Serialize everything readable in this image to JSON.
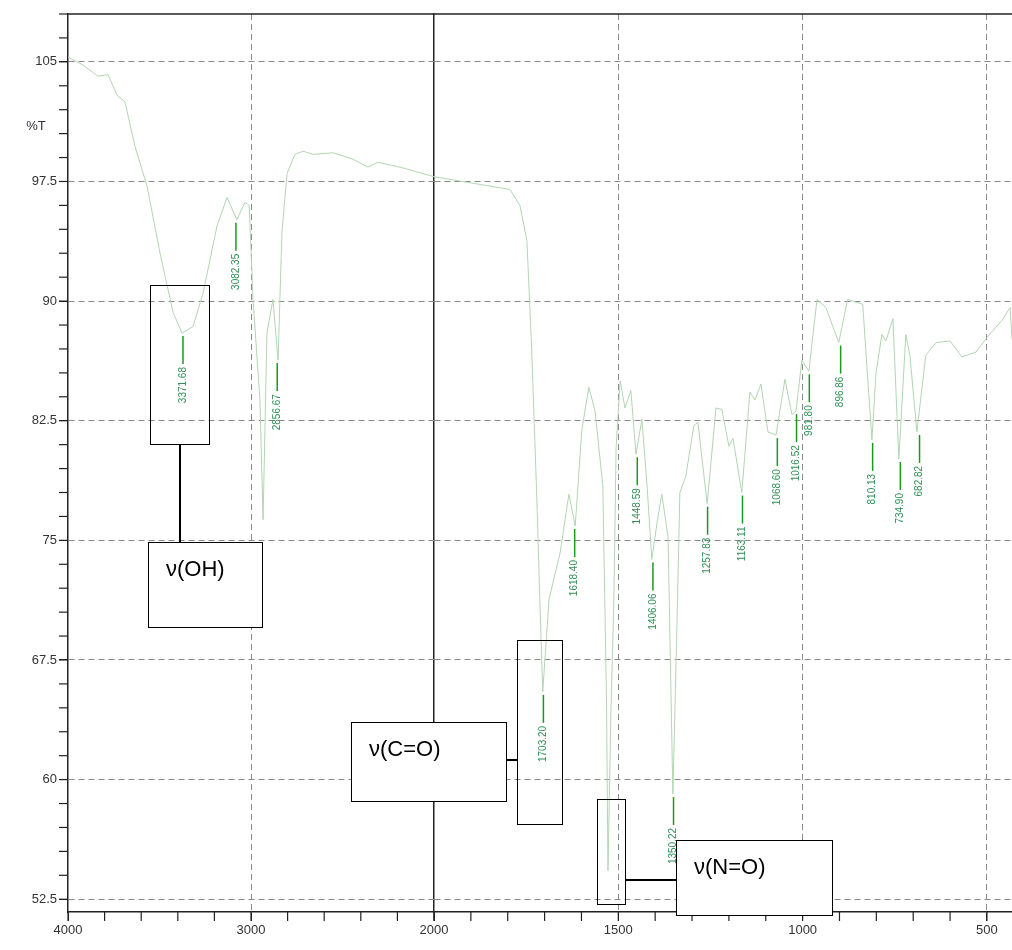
{
  "chart_data": [
    {
      "type": "line",
      "ylabel": "%T",
      "xlim": [
        4000,
        2000
      ],
      "xticks": [
        4000,
        3000,
        2000
      ],
      "ylim": [
        51.7,
        108
      ],
      "yticks": [
        52.5,
        60,
        67.5,
        75,
        82.5,
        90,
        97.5,
        105
      ],
      "grid": true,
      "series": [
        {
          "color": "#b2d6b2",
          "x": [
            4000,
            3918,
            3836,
            3781,
            3732,
            3689,
            3634,
            3568,
            3497,
            3426,
            3377,
            3317,
            3262,
            3186,
            3131,
            3077,
            3033,
            3010,
            2989,
            2951,
            2934,
            2913,
            2880,
            2852,
            2831,
            2803,
            2760,
            2716,
            2661,
            2552,
            2443,
            2361,
            2306,
            2186,
            2000
          ],
          "values": [
            105.3,
            104.8,
            104.1,
            104.2,
            102.9,
            102.5,
            99.7,
            97.2,
            93.0,
            89.3,
            88.0,
            88.4,
            90.5,
            94.7,
            96.5,
            95.1,
            96.2,
            96.0,
            90.1,
            83.8,
            76.3,
            88.0,
            90.1,
            86.3,
            94.3,
            98.0,
            99.2,
            99.4,
            99.2,
            99.3,
            98.9,
            98.4,
            98.7,
            98.4,
            97.8
          ]
        }
      ],
      "annotations": [
        "ν(OH)",
        {
          "text": "3371.68",
          "x": 3371.68,
          "y": 88.0
        },
        {
          "text": "3082.35",
          "x": 3082.35,
          "y": 95.1
        },
        {
          "text": "2856.67",
          "x": 2856.67,
          "y": 86.3
        }
      ]
    },
    {
      "type": "line",
      "xlim": [
        2000,
        432
      ],
      "xticks": [
        1500,
        1000,
        500
      ],
      "ylim": [
        51.7,
        108
      ],
      "yticks": [
        52.5,
        60,
        67.5,
        75,
        82.5,
        90,
        97.5,
        105
      ],
      "grid": true,
      "tick_labels": "x",
      "series": [
        {
          "color": "#b2d6b2",
          "x": [
            2000,
            1794,
            1767,
            1748,
            1735,
            1721,
            1713,
            1705,
            1688,
            1658,
            1634,
            1617,
            1599,
            1580,
            1563,
            1542,
            1532,
            1528,
            1520,
            1512,
            1506,
            1495,
            1482,
            1466,
            1452,
            1436,
            1422,
            1409,
            1395,
            1382,
            1365,
            1352,
            1341,
            1333,
            1317,
            1295,
            1284,
            1259,
            1235,
            1219,
            1200,
            1189,
            1165,
            1143,
            1129,
            1113,
            1094,
            1072,
            1048,
            1029,
            1018,
            1002,
            983,
            961,
            937,
            902,
            878,
            837,
            812,
            801,
            785,
            774,
            755,
            739,
            720,
            709,
            690,
            666,
            638,
            600,
            568,
            530,
            497,
            459,
            437,
            432
          ],
          "values": [
            97.8,
            97.0,
            96.0,
            93.8,
            87.0,
            77.6,
            71.3,
            65.5,
            71.3,
            74.2,
            77.9,
            75.9,
            81.9,
            84.6,
            83.1,
            78.4,
            65.0,
            54.3,
            64.3,
            71.3,
            80.8,
            85.0,
            83.3,
            84.4,
            80.4,
            82.6,
            78.4,
            73.8,
            76.1,
            77.9,
            75.2,
            59.1,
            69.6,
            78.0,
            79.0,
            82.2,
            82.4,
            77.3,
            83.3,
            83.2,
            80.9,
            81.4,
            78.0,
            84.3,
            83.8,
            84.8,
            81.8,
            81.6,
            85.1,
            82.9,
            83.1,
            86.3,
            85.6,
            90.1,
            89.6,
            87.4,
            90.1,
            89.8,
            81.3,
            85.5,
            87.9,
            87.5,
            88.9,
            80.1,
            87.9,
            86.6,
            81.8,
            86.6,
            87.4,
            87.5,
            86.5,
            86.8,
            87.8,
            88.8,
            89.6,
            87.6
          ]
        }
      ],
      "annotations": [
        "ν(C=O)",
        "ν(N=O)",
        {
          "text": "1703.20",
          "x": 1703.2,
          "y": 65.5
        },
        {
          "text": "1618.40",
          "x": 1618.4,
          "y": 75.9
        },
        {
          "text": "1448.59",
          "x": 1448.59,
          "y": 80.4
        },
        {
          "text": "1406.06",
          "x": 1406.06,
          "y": 73.8
        },
        {
          "text": "1350.22",
          "x": 1350.22,
          "y": 59.1
        },
        {
          "text": "1257.83",
          "x": 1257.83,
          "y": 77.3
        },
        {
          "text": "1163.11",
          "x": 1163.11,
          "y": 78.0
        },
        {
          "text": "1068.60",
          "x": 1068.6,
          "y": 81.6
        },
        {
          "text": "1016.52",
          "x": 1016.52,
          "y": 83.1
        },
        {
          "text": "981.80",
          "x": 981.8,
          "y": 85.6
        },
        {
          "text": "896.86",
          "x": 896.86,
          "y": 87.4
        },
        {
          "text": "810.13",
          "x": 810.13,
          "y": 81.3
        },
        {
          "text": "734.90",
          "x": 734.9,
          "y": 80.1
        },
        {
          "text": "682.82",
          "x": 682.82,
          "y": 81.8
        }
      ]
    }
  ]
}
